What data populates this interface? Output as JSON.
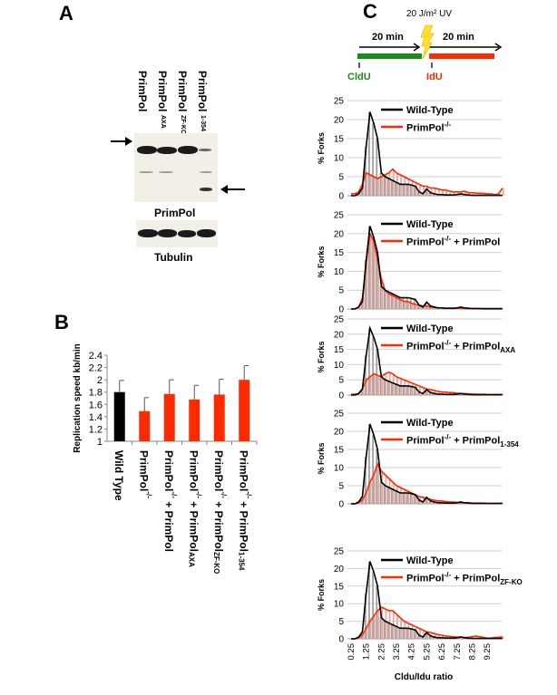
{
  "panel_a": {
    "letter": "A",
    "lanes": [
      {
        "name": "PrimPol",
        "sub": ""
      },
      {
        "name": "PrimPol",
        "sub": "AXA"
      },
      {
        "name": "PrimPol",
        "sub": "ZF-KO"
      },
      {
        "name": "PrimPol",
        "sub": "1-354"
      }
    ],
    "blot_label": "PrimPol",
    "loading_label": "Tubulin"
  },
  "panel_c_header": {
    "letter": "C",
    "uv_label": "20 J/m² UV",
    "first_pulse": "20 min",
    "second_pulse": "20 min",
    "first_label": "CldU",
    "second_label": "IdU",
    "first_color": "#1a8a1a",
    "second_color": "#ff2a00"
  },
  "chart_data": [
    {
      "type": "bar",
      "panel": "B",
      "ylabel": "Replication speed kb/min",
      "ylim": [
        1,
        2.4
      ],
      "yticks": [
        "1",
        "1.2",
        "1.4",
        "1.6",
        "1.8",
        "2",
        "2.2",
        "2.4"
      ],
      "categories": [
        {
          "base": "Wild Type",
          "sup": "",
          "suffix": "",
          "sub": ""
        },
        {
          "base": "PrimPol",
          "sup": "-/-",
          "suffix": "",
          "sub": ""
        },
        {
          "base": "PrimPol",
          "sup": "-/-",
          "suffix": " + PrimPol",
          "sub": ""
        },
        {
          "base": "PrimPol",
          "sup": "-/-",
          "suffix": " + PrimPol",
          "sub": "AXA"
        },
        {
          "base": "PrimPol",
          "sup": "-/-",
          "suffix": " + PrimPol",
          "sub": "ZF-KO"
        },
        {
          "base": "PrimPol",
          "sup": "-/-",
          "suffix": " + PrimPol",
          "sub": "1-354"
        }
      ],
      "values": [
        1.8,
        1.49,
        1.77,
        1.68,
        1.76,
        2.0
      ],
      "errors": [
        0.19,
        0.22,
        0.23,
        0.23,
        0.25,
        0.23
      ],
      "colors": [
        "#000000",
        "#ff2a00",
        "#ff2a00",
        "#ff2a00",
        "#ff2a00",
        "#ff2a00"
      ]
    },
    {
      "type": "histogram-line",
      "panel": "C",
      "ylabel": "% Forks",
      "xlabel": "Cldu/Idu ratio",
      "ylim": [
        0,
        25
      ],
      "yticks": [
        "0",
        "5",
        "10",
        "15",
        "20",
        "25"
      ],
      "x_start": 0.25,
      "x_step": 0.25,
      "xticks": [
        "0.25",
        "1.25",
        "2.25",
        "3.25",
        "4.25",
        "5.25",
        "6.25",
        "7.25",
        "8.25",
        "9.25"
      ],
      "grid": true,
      "legend_position": "top-right",
      "colors": {
        "wild_type": "#000000",
        "wild_type_bars": "#a0a0a0",
        "mutant": "#ff2a00",
        "mutant_bars": "#e8a8a0"
      },
      "wild_type": {
        "name": "Wild-Type",
        "values": [
          0,
          0,
          0.5,
          2,
          13,
          22,
          19,
          15,
          6,
          5,
          4.5,
          4,
          3.5,
          3,
          3,
          3,
          2.8,
          2.5,
          1,
          0.5,
          1.8,
          0.8,
          0.5,
          0.3,
          0.3,
          0.2,
          0.2,
          0.2,
          0.3,
          0.5,
          0.3,
          0.2,
          0.1,
          0.1,
          0.1,
          0.1,
          0.1,
          0.1,
          0.1,
          0.1,
          0.1
        ]
      },
      "panels": [
        {
          "mutant": {
            "base": "PrimPol",
            "sup": "-/-",
            "suffix": "",
            "sub": ""
          },
          "values": [
            0.5,
            0.5,
            1,
            3,
            6,
            5.5,
            5,
            4.5,
            5,
            5.5,
            6,
            7,
            6,
            5.5,
            5,
            4.5,
            4,
            3.5,
            3,
            2.5,
            2.5,
            2,
            2,
            1.8,
            1.5,
            1.5,
            1.2,
            1,
            1,
            1,
            1.2,
            0.8,
            0.8,
            0.7,
            0.6,
            0.6,
            0.5,
            0.5,
            0.3,
            0.5,
            2
          ]
        },
        {
          "mutant": {
            "base": "PrimPol",
            "sup": "-/-",
            "suffix": " + PrimPol",
            "sub": ""
          },
          "values": [
            0,
            0,
            0.5,
            3,
            12,
            20,
            18,
            13,
            8,
            5,
            4,
            3.5,
            3,
            2.5,
            2,
            2,
            1.5,
            1.2,
            1,
            0.8,
            0.8,
            0.5,
            0.5,
            0.3,
            0.3,
            0.2,
            0.2,
            0.2,
            0.2,
            0.2,
            0.1,
            0.1,
            0.1,
            0.1,
            0.1,
            0,
            0,
            0,
            0,
            0,
            0
          ]
        },
        {
          "mutant": {
            "base": "PrimPol",
            "sup": "-/-",
            "suffix": " + PrimPol",
            "sub": "AXA"
          },
          "values": [
            0.3,
            0.3,
            0.5,
            2,
            5,
            6,
            7,
            6.5,
            6,
            7,
            7.5,
            7,
            6,
            5.5,
            5,
            4.5,
            4,
            3.5,
            3,
            2.5,
            2,
            1.8,
            1.5,
            1.2,
            1,
            1,
            0.8,
            0.8,
            0.6,
            0.5,
            0.5,
            0.4,
            0.4,
            0.3,
            0.3,
            0.3,
            0.2,
            0.2,
            0.2,
            0.2,
            0.2
          ]
        },
        {
          "mutant": {
            "base": "PrimPol",
            "sup": "-/-",
            "suffix": " + PrimPol",
            "sub": "1-354"
          },
          "values": [
            0,
            0,
            0.3,
            1,
            3,
            6,
            8,
            11,
            9,
            8,
            7,
            6,
            5,
            4.5,
            4,
            3.5,
            3,
            2.5,
            2,
            1.8,
            1.5,
            1.2,
            1,
            0.8,
            0.8,
            0.6,
            0.5,
            0.5,
            0.4,
            0.3,
            0.3,
            0.3,
            0.2,
            0.2,
            0.2,
            0.2,
            0.1,
            0.1,
            0.1,
            0.1,
            0.1
          ]
        },
        {
          "mutant": {
            "base": "PrimPol",
            "sup": "-/-",
            "suffix": " + PrimPol",
            "sub": "ZF-KO"
          },
          "values": [
            0,
            0,
            0.3,
            1,
            3,
            5,
            6.5,
            8,
            9,
            8.5,
            8,
            8,
            7,
            6,
            5,
            4.5,
            4,
            3.5,
            3,
            2.5,
            2,
            1.8,
            1.5,
            1.2,
            1,
            0.8,
            0.7,
            0.6,
            0.5,
            0.5,
            0.4,
            0.4,
            0.6,
            0.8,
            0.6,
            0.4,
            0.2,
            0.2,
            0.4,
            0.4,
            0.6
          ]
        }
      ]
    }
  ]
}
